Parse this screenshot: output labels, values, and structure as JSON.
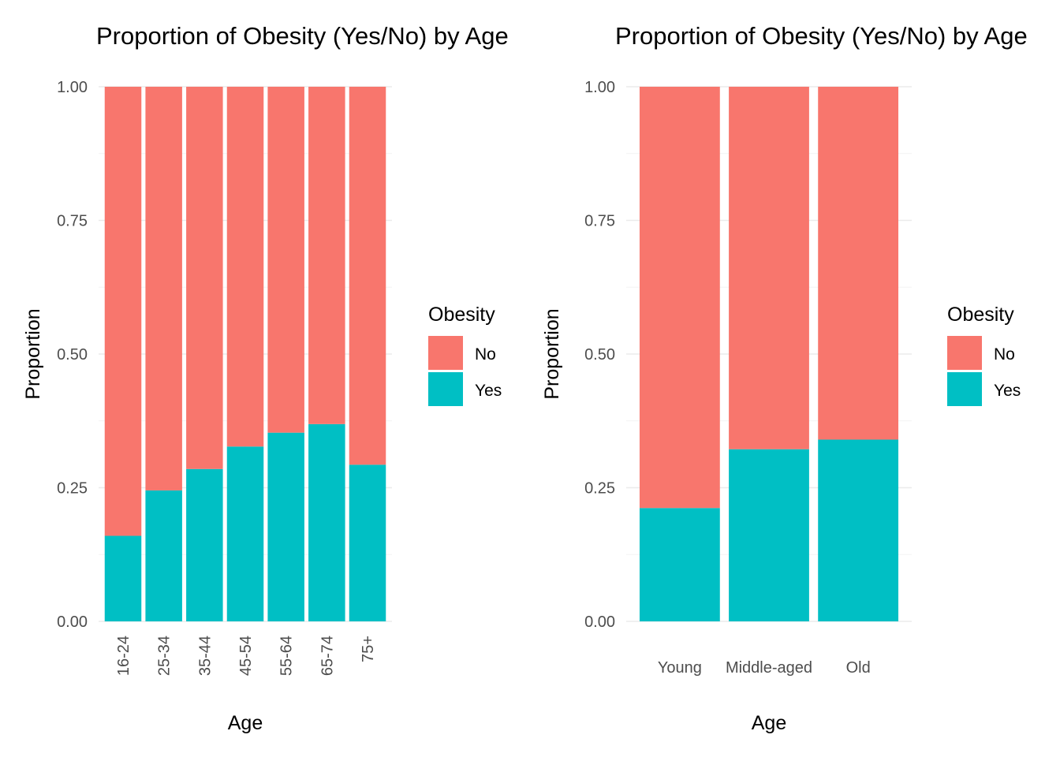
{
  "chart_data": [
    {
      "type": "bar",
      "stacked": true,
      "title": "Proportion of Obesity (Yes/No) by Age",
      "xlabel": "Age",
      "ylabel": "Proportion",
      "ylim": [
        0,
        1
      ],
      "yticks": [
        "0.00",
        "0.25",
        "0.50",
        "0.75",
        "1.00"
      ],
      "x_tick_rotation": "vertical",
      "grid": true,
      "categories": [
        "16-24",
        "25-34",
        "35-44",
        "45-54",
        "55-64",
        "65-74",
        "75+"
      ],
      "series": [
        {
          "name": "No",
          "color": "#F8766D",
          "values": [
            0.84,
            0.755,
            0.715,
            0.673,
            0.647,
            0.631,
            0.707
          ]
        },
        {
          "name": "Yes",
          "color": "#00BFC4",
          "values": [
            0.16,
            0.245,
            0.285,
            0.327,
            0.353,
            0.369,
            0.293
          ]
        }
      ],
      "legend": {
        "title": "Obesity",
        "position": "right",
        "entries": [
          "No",
          "Yes"
        ]
      }
    },
    {
      "type": "bar",
      "stacked": true,
      "title": "Proportion of Obesity (Yes/No) by Age",
      "xlabel": "Age",
      "ylabel": "Proportion",
      "ylim": [
        0,
        1
      ],
      "yticks": [
        "0.00",
        "0.25",
        "0.50",
        "0.75",
        "1.00"
      ],
      "x_tick_rotation": "horizontal",
      "grid": true,
      "categories": [
        "Young",
        "Middle-aged",
        "Old"
      ],
      "series": [
        {
          "name": "No",
          "color": "#F8766D",
          "values": [
            0.788,
            0.678,
            0.66
          ]
        },
        {
          "name": "Yes",
          "color": "#00BFC4",
          "values": [
            0.212,
            0.322,
            0.34
          ]
        }
      ],
      "legend": {
        "title": "Obesity",
        "position": "right",
        "entries": [
          "No",
          "Yes"
        ]
      }
    }
  ]
}
